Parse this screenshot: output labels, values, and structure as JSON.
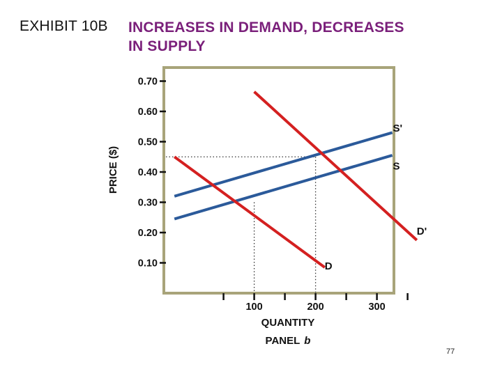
{
  "header": {
    "exhibit": "EXHIBIT 10B",
    "title_line1": "INCREASES IN DEMAND, DECREASES",
    "title_line2": "IN SUPPLY"
  },
  "page_number": "77",
  "colors": {
    "title": "#7a1f7a",
    "demand": "#d42020",
    "supply": "#2b5a9a",
    "frame": "#a8a47a"
  },
  "chart_data": {
    "type": "line",
    "ylabel": "PRICE ($)",
    "xlabel": "QUANTITY",
    "panel": "PANEL",
    "panel_letter": "b",
    "y_ticks": [
      {
        "value": 0.7,
        "label": "0.70"
      },
      {
        "value": 0.6,
        "label": "0.60"
      },
      {
        "value": 0.5,
        "label": "0.50"
      },
      {
        "value": 0.4,
        "label": "0.40"
      },
      {
        "value": 0.3,
        "label": "0.30"
      },
      {
        "value": 0.2,
        "label": "0.20"
      },
      {
        "value": 0.1,
        "label": "0.10"
      }
    ],
    "x_ticks": [
      {
        "value": 100,
        "label": "100"
      },
      {
        "value": 200,
        "label": "200"
      },
      {
        "value": 300,
        "label": "300"
      }
    ],
    "x_minor_ticks": [
      50,
      150,
      250,
      350
    ],
    "xlim": [
      -45,
      355
    ],
    "ylim": [
      0.0,
      0.75
    ],
    "series": [
      {
        "name": "S'",
        "role": "supply",
        "color": "#2b5a9a",
        "x": [
          -30,
          325
        ],
        "y": [
          0.32,
          0.53
        ],
        "label_at": [
          326,
          0.545
        ]
      },
      {
        "name": "S",
        "role": "supply",
        "color": "#2b5a9a",
        "x": [
          -30,
          325
        ],
        "y": [
          0.245,
          0.455
        ],
        "label_at": [
          326,
          0.42
        ]
      },
      {
        "name": "D'",
        "role": "demand",
        "color": "#d42020",
        "x": [
          100,
          365
        ],
        "y": [
          0.665,
          0.175
        ],
        "label_at": [
          365,
          0.205
        ]
      },
      {
        "name": "D",
        "role": "demand",
        "color": "#d42020",
        "x": [
          -30,
          215
        ],
        "y": [
          0.45,
          0.085
        ],
        "label_at": [
          215,
          0.09
        ]
      }
    ],
    "guides": [
      {
        "x": 100,
        "y": 0.3,
        "from_axis": "x"
      },
      {
        "x": 200,
        "y": 0.45,
        "from_axis": "both"
      }
    ]
  }
}
